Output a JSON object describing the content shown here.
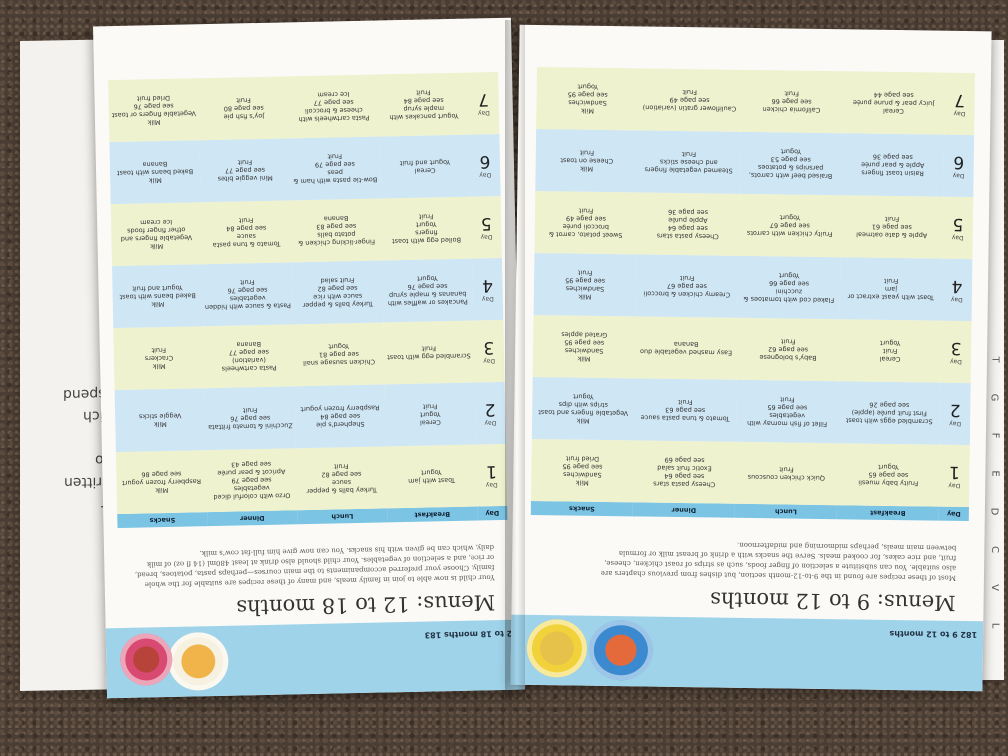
{
  "background_book": {
    "lines": [
      "d's",
      "ing",
      "n for",
      "as written",
      "n two",
      "ting",
      "t which",
      "t to spend"
    ]
  },
  "edge_tabs": [
    "L",
    "V",
    "C",
    "D",
    "E",
    "F",
    "G",
    "T"
  ],
  "left_page": {
    "running_head": "12 to 18 months   183",
    "title": "Menus: 12 to 18 months",
    "intro": "Your child is now able to join in family meals, and many of these recipes are suitable for the whole family. Choose your preferred accompaniments to the main courses—perhaps pasta, potatoes, bread, or rice, and a selection of vegetables. Your child should also drink at least 480ml (14 fl oz) of milk daily, which can be given with his snacks. You can now give him full-fat cow's milk.",
    "headers": [
      "Day",
      "Breakfast",
      "Lunch",
      "Dinner",
      "Snacks"
    ],
    "rows": [
      {
        "day": "1",
        "breakfast": "Toast with jam\nYogurt",
        "lunch": "Turkey balls & pepper sauce\nsee page 82\nFruit",
        "dinner": "Orzo with colorful diced vegetables\nsee page 79\nApricot & pear purée\nsee page 43",
        "snacks": "Milk\nRaspberry frozen yogurt\nsee page 86"
      },
      {
        "day": "2",
        "breakfast": "Cereal\nYogurt\nFruit",
        "lunch": "Shepherd's pie\nsee page 84\nRaspberry frozen yogurt",
        "dinner": "Zucchini & tomato frittata\nsee page 76\nFruit",
        "snacks": "Milk\nVeggie sticks"
      },
      {
        "day": "3",
        "breakfast": "Scrambled egg with toast\nFruit",
        "lunch": "Chicken sausage snail\nsee page 81\nYogurt",
        "dinner": "Pasta cartwheels (variation)\nsee page 77\nBanana",
        "snacks": "Milk\nCrackers\nFruit"
      },
      {
        "day": "4",
        "breakfast": "Pancakes or waffles with bananas & maple syrup\nsee page 76\nYogurt",
        "lunch": "Turkey balls & pepper sauce with rice\nsee page 82\nFruit salad",
        "dinner": "Pasta & sauce with hidden vegetables\nsee page 76\nFruit",
        "snacks": "Milk\nBaked beans with toast\nYogurt and fruit"
      },
      {
        "day": "5",
        "breakfast": "Boiled egg with toast fingers\nYogurt\nFruit",
        "lunch": "Finger-licking chicken & potato balls\nsee page 83\nBanana",
        "dinner": "Tomato & tuna pasta sauce\nsee page 84\nFruit",
        "snacks": "Milk\nVegetable fingers and other finger foods\nIce cream"
      },
      {
        "day": "6",
        "breakfast": "Cereal\nYogurt and fruit",
        "lunch": "Bow-tie pasta with ham & peas\nsee page 79\nFruit",
        "dinner": "Mini veggie bites\nsee page 77\nFruit",
        "snacks": "Milk\nBaked beans with toast\nBanana"
      },
      {
        "day": "7",
        "breakfast": "Yogurt pancakes with maple syrup\nsee page 84\nFruit",
        "lunch": "Pasta cartwheels with cheese & broccoli\nsee page 77\nIce cream",
        "dinner": "Joy's fish pie\nsee page 80\nFruit",
        "snacks": "Milk\nVegetable fingers or toast\nsee page 76\nDried fruit"
      }
    ]
  },
  "right_page": {
    "running_head": "182   9 to 12 months",
    "title": "Menus: 9 to 12 months",
    "intro": "Most of these recipes are found in the 9-to-12-month section, but dishes from previous chapters are also suitable. You can substitute a selection of finger foods, such as strips of roast chicken, cheese, fruit, and rice cakes, for cooked meals. Serve the snacks with a drink of breast milk or formula between main meals, perhaps midmorning and midafternoon.",
    "headers": [
      "Day",
      "Breakfast",
      "Lunch",
      "Dinner",
      "Snacks"
    ],
    "rows": [
      {
        "day": "1",
        "breakfast": "Fruity baby muesli\nsee page 65\nYogurt",
        "lunch": "Quick chicken couscous\nFruit",
        "dinner": "Cheesy pasta stars\nsee page 64\nExotic fruit salad\nsee page 69",
        "snacks": "Milk\nSandwiches\nsee page 95\nDried fruit"
      },
      {
        "day": "2",
        "breakfast": "Scrambled eggs with toast\nFirst fruit purée (apple)\nsee page 26",
        "lunch": "Fillet of fish mornay with vegetables\nsee page 65\nFruit",
        "dinner": "Tomato & tuna pasta sauce\nsee page 63\nFruit",
        "snacks": "Milk\nVegetable fingers and toast strips with dips\nYogurt"
      },
      {
        "day": "3",
        "breakfast": "Cereal\nFruit\nYogurt",
        "lunch": "Baby's bolognese\nsee page 62\nFruit",
        "dinner": "Easy mashed vegetable duo\nBanana",
        "snacks": "Milk\nSandwiches\nsee page 95\nGrated apples"
      },
      {
        "day": "4",
        "breakfast": "Toast with yeast extract or jam\nFruit",
        "lunch": "Flaked cod with tomatoes & zucchini\nsee page 66\nYogurt",
        "dinner": "Creamy chicken & broccoli\nsee page 67\nFruit",
        "snacks": "Milk\nSandwiches\nsee page 95\nFruit"
      },
      {
        "day": "5",
        "breakfast": "Apple & date oatmeal\nsee page 61\nFruit",
        "lunch": "Fruity chicken with carrots\nsee page 67\nYogurt",
        "dinner": "Cheesy pasta stars\nsee page 64\nApple purée\nsee page 36",
        "snacks": "Sweet potato, carrot & broccoli purée\nsee page 49\nFruit"
      },
      {
        "day": "6",
        "breakfast": "Raisin toast fingers\nApple & pear purée\nsee page 36",
        "lunch": "Braised beef with carrots, parsnips & potatoes\nsee page 53\nYogurt",
        "dinner": "Steamed vegetable fingers and cheese sticks\nFruit",
        "snacks": "Milk\nCheese on toast\nFruit"
      },
      {
        "day": "7",
        "breakfast": "Cereal\nJuicy pear & prune purée\nsee page 44",
        "lunch": "California chicken\nsee page 66\nFruit",
        "dinner": "Cauliflower gratin (variation)\nsee page 49\nFruit",
        "snacks": "Milk\nSandwiches\nsee page 95\nYogurt"
      }
    ]
  },
  "colors": {
    "header_blue": "#7bc4e4",
    "row_yellow": "#eef2cf",
    "row_blue": "#cfe6f4",
    "strip_blue": "#9fd3ea"
  }
}
